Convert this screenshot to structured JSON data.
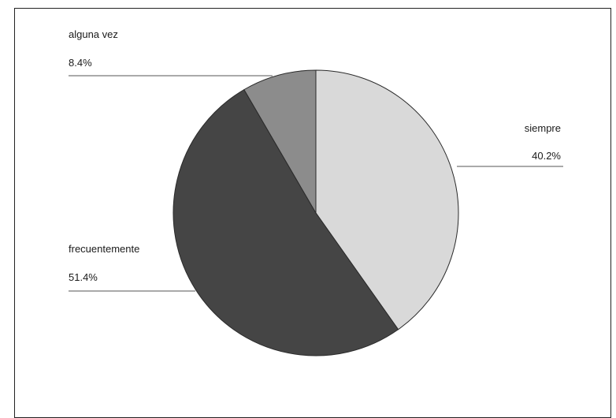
{
  "chart_data": {
    "type": "pie",
    "title": "",
    "slices": [
      {
        "label": "siempre",
        "value": 40.2,
        "value_label": "40.2%",
        "color": "#d9d9d9"
      },
      {
        "label": "frecuentemente",
        "value": 51.4,
        "value_label": "51.4%",
        "color": "#454545"
      },
      {
        "label": "alguna vez",
        "value": 8.4,
        "value_label": "8.4%",
        "color": "#8c8c8c"
      }
    ],
    "start_angle": "12 o'clock",
    "direction": "clockwise",
    "legend": "none",
    "outline_color": "#2a2a2a",
    "leader_line_color": "#555555"
  }
}
